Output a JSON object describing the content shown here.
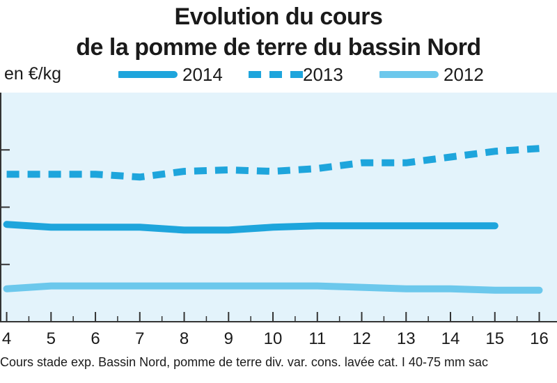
{
  "chart_data": {
    "type": "line",
    "title_lines": [
      "Evolution du cours",
      "de la pomme de terre du bassin Nord"
    ],
    "ylabel": "en €/kg",
    "x": [
      4,
      5,
      6,
      7,
      8,
      9,
      10,
      11,
      12,
      13,
      14,
      15,
      16
    ],
    "series": [
      {
        "name": "2014",
        "color": "#1ea5dc",
        "style": "solid",
        "values": [
          0.54,
          0.53,
          0.53,
          0.53,
          0.52,
          0.52,
          0.53,
          0.535,
          0.535,
          0.535,
          0.535,
          0.535,
          null
        ]
      },
      {
        "name": "2013",
        "color": "#1ea5dc",
        "style": "dashed",
        "values": [
          0.715,
          0.715,
          0.715,
          0.705,
          0.725,
          0.73,
          0.725,
          0.735,
          0.755,
          0.755,
          0.775,
          0.795,
          0.805
        ]
      },
      {
        "name": "2012",
        "color": "#6cc8ec",
        "style": "solid",
        "values": [
          0.315,
          0.325,
          0.325,
          0.325,
          0.325,
          0.325,
          0.325,
          0.325,
          0.32,
          0.315,
          0.315,
          0.31,
          0.31
        ]
      }
    ],
    "ylim": [
      0.2,
      1.0
    ],
    "xlim": [
      3.85,
      16.4
    ],
    "grid": false,
    "legend_position": "top",
    "footnote": "Cours stade exp. Bassin Nord, pomme de terre div. var. cons. lavée cat. I 40-75 mm sac"
  }
}
